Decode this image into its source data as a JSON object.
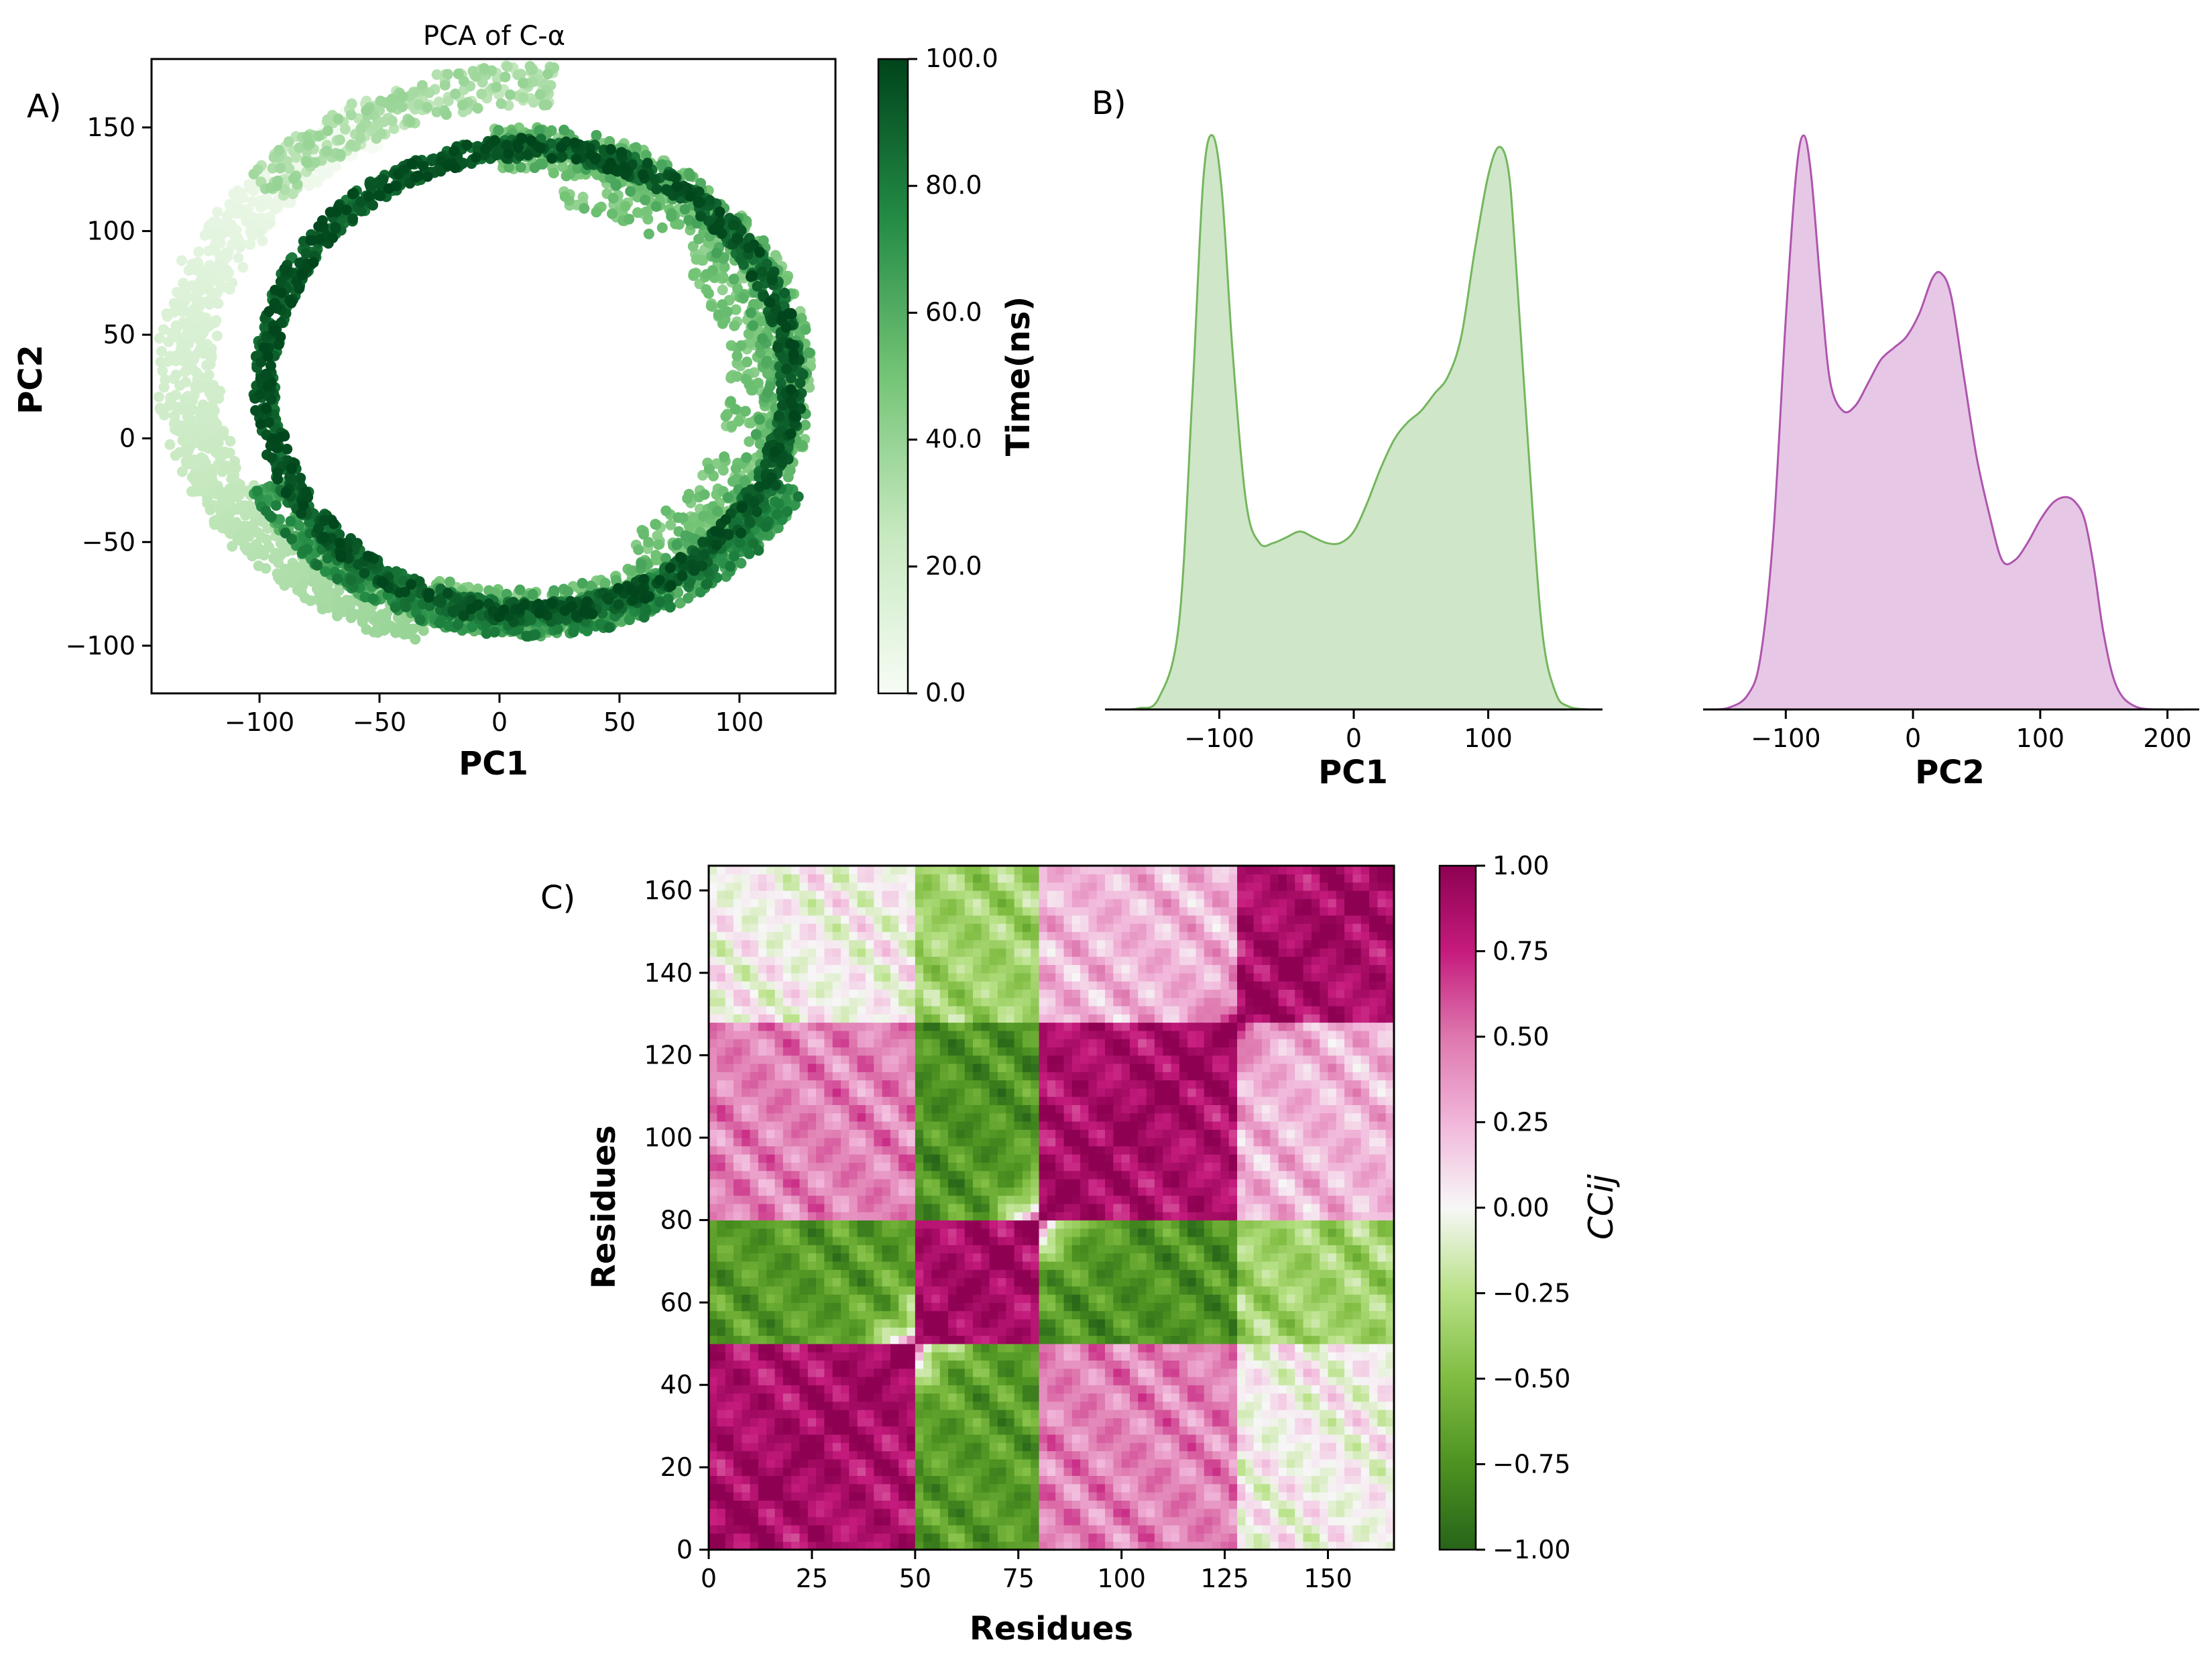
{
  "figure": {
    "panel_labels": [
      "A)",
      "B)",
      "C)"
    ]
  },
  "chart_data": [
    {
      "type": "scatter",
      "title": "PCA of C-α",
      "xlabel": "PC1",
      "ylabel": "PC2",
      "xlim": [
        -145,
        140
      ],
      "ylim": [
        -123,
        183
      ],
      "xticks": [
        -100,
        -50,
        0,
        50,
        100
      ],
      "yticks": [
        -100,
        -50,
        0,
        50,
        100,
        150
      ],
      "xtick_labels": [
        "−100",
        "−50",
        "0",
        "50",
        "100"
      ],
      "ytick_labels": [
        "−100",
        "−50",
        "0",
        "50",
        "100",
        "150"
      ],
      "colorbar": {
        "label": "Time(ns)",
        "range": [
          0,
          100
        ],
        "ticks": [
          0,
          20,
          40,
          60,
          80,
          100
        ],
        "tick_labels": [
          "0.0",
          "20.0",
          "40.0",
          "60.0",
          "80.0",
          "100.0"
        ],
        "colormap": "Greens",
        "colors": [
          "#f7fcf5",
          "#c7e9c0",
          "#74c476",
          "#238b45",
          "#00441b"
        ]
      },
      "trajectory_description": "circular trajectory, center approx (15, 25), radius approx 115-125, outer arc for early times on left side",
      "series": [
        {
          "name": "0-20 ns",
          "time_range": [
            0,
            20
          ],
          "points": [
            [
              -120,
              10
            ],
            [
              -130,
              -30
            ],
            [
              -125,
              -70
            ],
            [
              -100,
              -95
            ],
            [
              -70,
              -105
            ],
            [
              -40,
              -110
            ],
            [
              -110,
              50
            ],
            [
              -100,
              80
            ],
            [
              -95,
              -10
            ]
          ]
        },
        {
          "name": "20-40 ns",
          "time_range": [
            20,
            40
          ],
          "points": [
            [
              -115,
              95
            ],
            [
              -95,
              140
            ],
            [
              -60,
              160
            ],
            [
              -30,
              168
            ],
            [
              -5,
              170
            ],
            [
              -120,
              120
            ],
            [
              -135,
              60
            ]
          ]
        },
        {
          "name": "40-60 ns",
          "time_range": [
            40,
            60
          ],
          "points": [
            [
              20,
              150
            ],
            [
              60,
              130
            ],
            [
              90,
              110
            ],
            [
              110,
              60
            ],
            [
              120,
              20
            ],
            [
              125,
              -20
            ],
            [
              110,
              -60
            ],
            [
              80,
              -80
            ],
            [
              50,
              -90
            ],
            [
              20,
              -95
            ]
          ]
        },
        {
          "name": "60-80 ns",
          "time_range": [
            60,
            80
          ],
          "points": [
            [
              -10,
              -90
            ],
            [
              -40,
              -75
            ],
            [
              -65,
              -60
            ],
            [
              40,
              -85
            ],
            [
              80,
              -70
            ],
            [
              105,
              -40
            ],
            [
              115,
              0
            ]
          ]
        },
        {
          "name": "80-100 ns",
          "time_range": [
            80,
            100
          ],
          "points": [
            [
              -90,
              50
            ],
            [
              -80,
              90
            ],
            [
              -55,
              125
            ],
            [
              -20,
              145
            ],
            [
              10,
              150
            ],
            [
              50,
              145
            ],
            [
              85,
              120
            ],
            [
              105,
              80
            ],
            [
              112,
              30
            ],
            [
              110,
              -20
            ],
            [
              95,
              -60
            ],
            [
              60,
              -85
            ],
            [
              20,
              -95
            ],
            [
              -20,
              -85
            ],
            [
              -60,
              -60
            ],
            [
              -85,
              -25
            ],
            [
              -100,
              10
            ]
          ]
        }
      ]
    },
    {
      "type": "area",
      "subtype": "kde",
      "xlabel": "PC1",
      "xlim": [
        -185,
        185
      ],
      "xticks": [
        -100,
        0,
        100
      ],
      "xtick_labels": [
        "−100",
        "0",
        "100"
      ],
      "color": "#74b65e",
      "fill": "#cfe6c8",
      "x": [
        -175,
        -160,
        -145,
        -130,
        -120,
        -112,
        -105,
        -98,
        -90,
        -80,
        -70,
        -60,
        -50,
        -40,
        -30,
        -20,
        -10,
        0,
        10,
        20,
        30,
        40,
        50,
        60,
        70,
        80,
        90,
        100,
        108,
        115,
        120,
        130,
        140,
        150,
        160,
        175
      ],
      "density": [
        0.0,
        0.002,
        0.02,
        0.15,
        0.55,
        0.92,
        1.0,
        0.9,
        0.62,
        0.36,
        0.29,
        0.29,
        0.3,
        0.31,
        0.3,
        0.29,
        0.29,
        0.31,
        0.36,
        0.42,
        0.47,
        0.5,
        0.52,
        0.55,
        0.58,
        0.65,
        0.8,
        0.93,
        0.98,
        0.94,
        0.8,
        0.45,
        0.14,
        0.03,
        0.005,
        0.0
      ]
    },
    {
      "type": "area",
      "subtype": "kde",
      "xlabel": "PC2",
      "xlim": [
        -165,
        225
      ],
      "xticks": [
        -100,
        0,
        100,
        200
      ],
      "xtick_labels": [
        "−100",
        "0",
        "100",
        "200"
      ],
      "color": "#ad55ad",
      "fill": "#e7c7e6",
      "x": [
        -160,
        -145,
        -130,
        -120,
        -110,
        -100,
        -92,
        -86,
        -80,
        -72,
        -65,
        -55,
        -45,
        -35,
        -25,
        -15,
        -5,
        5,
        15,
        22,
        30,
        40,
        50,
        60,
        70,
        80,
        90,
        100,
        110,
        120,
        128,
        135,
        142,
        150,
        160,
        175,
        200,
        215
      ],
      "density": [
        0.0,
        0.003,
        0.025,
        0.09,
        0.3,
        0.68,
        0.93,
        1.0,
        0.93,
        0.72,
        0.57,
        0.52,
        0.53,
        0.57,
        0.61,
        0.63,
        0.65,
        0.69,
        0.75,
        0.76,
        0.72,
        0.58,
        0.44,
        0.34,
        0.26,
        0.26,
        0.29,
        0.33,
        0.36,
        0.37,
        0.36,
        0.33,
        0.25,
        0.13,
        0.04,
        0.005,
        0.0,
        0.0
      ]
    },
    {
      "type": "heatmap",
      "title": "",
      "xlabel": "Residues",
      "ylabel": "Residues",
      "xlim": [
        0,
        166
      ],
      "ylim": [
        0,
        166
      ],
      "xticks": [
        0,
        25,
        50,
        75,
        100,
        125,
        150
      ],
      "yticks": [
        0,
        20,
        40,
        60,
        80,
        100,
        120,
        140,
        160
      ],
      "xtick_labels": [
        "0",
        "25",
        "50",
        "75",
        "100",
        "125",
        "150"
      ],
      "ytick_labels": [
        "0",
        "20",
        "40",
        "60",
        "80",
        "100",
        "120",
        "140",
        "160"
      ],
      "colorbar": {
        "label": "CCij",
        "range": [
          -1,
          1
        ],
        "ticks": [
          -1,
          -0.75,
          -0.5,
          -0.25,
          0,
          0.25,
          0.5,
          0.75,
          1
        ],
        "tick_labels": [
          "−1.00",
          "−0.75",
          "−0.50",
          "−0.25",
          "0.00",
          "0.25",
          "0.50",
          "0.75",
          "1.00"
        ],
        "colormap": "PiYG_r",
        "colors": [
          "#276419",
          "#4d9221",
          "#7fbc41",
          "#b8e186",
          "#f7f7f7",
          "#f1b6da",
          "#de77ae",
          "#c51b7d",
          "#8e0152"
        ]
      },
      "domains": {
        "boundaries": [
          0,
          50,
          80,
          128,
          166
        ],
        "block_correlation": [
          [
            0.85,
            -0.7,
            0.45,
            0.0
          ],
          [
            -0.7,
            0.85,
            -0.75,
            -0.35
          ],
          [
            0.45,
            -0.75,
            0.85,
            0.25
          ],
          [
            0.0,
            -0.35,
            0.25,
            0.85
          ]
        ]
      }
    }
  ]
}
